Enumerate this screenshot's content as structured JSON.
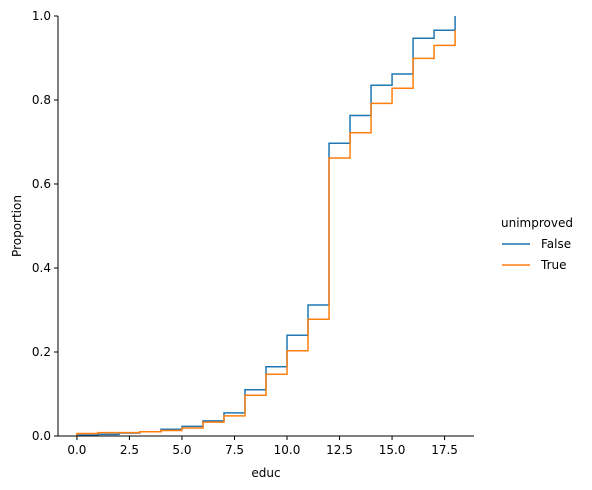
{
  "chart_data": {
    "type": "line",
    "subtype": "ecdf-step",
    "title": "",
    "xlabel": "educ",
    "ylabel": "Proportion",
    "xlim": [
      -0.9,
      18.9
    ],
    "ylim": [
      0,
      1
    ],
    "xticks": [
      "0.0",
      "2.5",
      "5.0",
      "7.5",
      "10.0",
      "12.5",
      "15.0",
      "17.5"
    ],
    "yticks": [
      "0.0",
      "0.2",
      "0.4",
      "0.6",
      "0.8",
      "1.0"
    ],
    "grid": false,
    "legend": {
      "title": "unimproved",
      "placement": "right"
    },
    "series": [
      {
        "name": "False",
        "color": "#1f77b4",
        "x": [
          0,
          1,
          2,
          3,
          4,
          5,
          6,
          7,
          8,
          9,
          10,
          11,
          12,
          13,
          14,
          15,
          16,
          17,
          18
        ],
        "y": [
          0.002,
          0.004,
          0.007,
          0.01,
          0.016,
          0.023,
          0.036,
          0.055,
          0.11,
          0.165,
          0.24,
          0.312,
          0.697,
          0.763,
          0.835,
          0.862,
          0.947,
          0.966,
          1.0
        ]
      },
      {
        "name": "True",
        "color": "#ff7f0e",
        "x": [
          0,
          1,
          2,
          3,
          4,
          5,
          6,
          7,
          8,
          9,
          10,
          11,
          12,
          13,
          14,
          15,
          16,
          17,
          18
        ],
        "y": [
          0.006,
          0.008,
          0.008,
          0.01,
          0.013,
          0.019,
          0.033,
          0.048,
          0.097,
          0.147,
          0.203,
          0.278,
          0.662,
          0.722,
          0.792,
          0.828,
          0.899,
          0.93,
          0.967
        ]
      }
    ]
  }
}
